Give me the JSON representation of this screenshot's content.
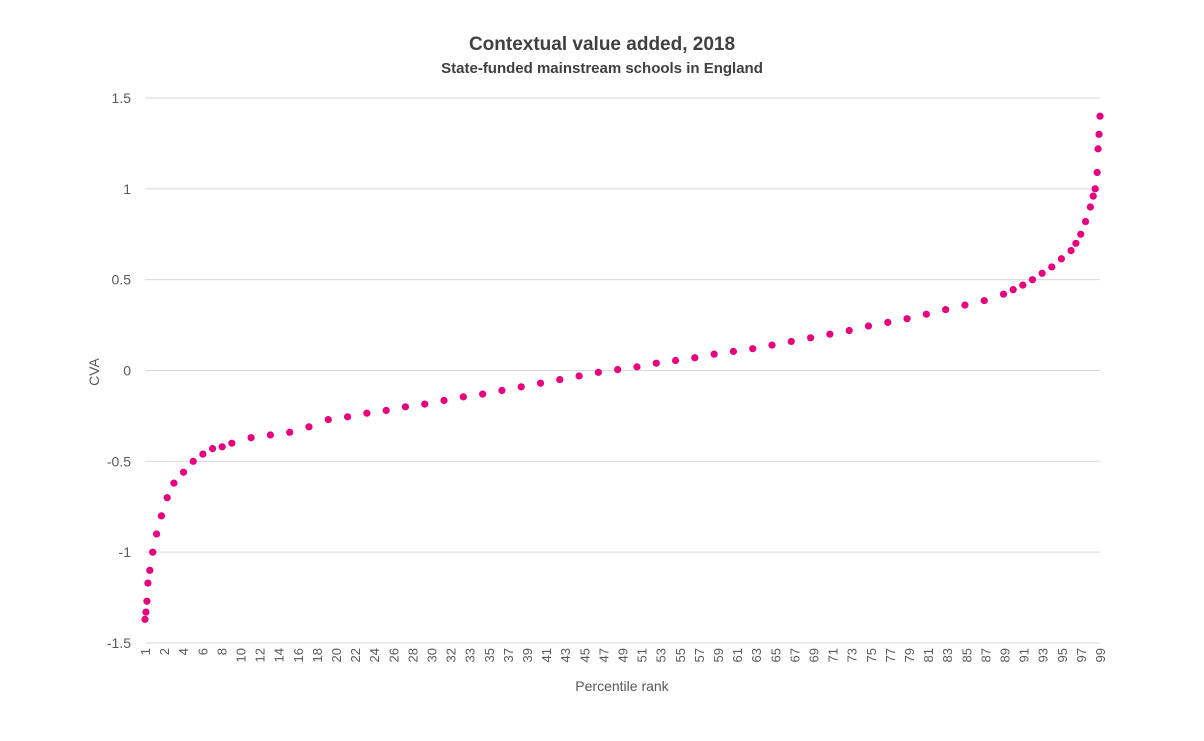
{
  "chart_data": {
    "type": "scatter",
    "title": "Contextual value added, 2018",
    "subtitle": "State-funded mainstream schools in England",
    "xlabel": "Percentile rank",
    "ylabel": "CVA",
    "ylim": [
      -1.5,
      1.5
    ],
    "xlim": [
      1,
      100
    ],
    "yticks": [
      "1.5",
      "1",
      "0.5",
      "0",
      "-0.5",
      "-1",
      "-1.5"
    ],
    "xticks": [
      "1",
      "2",
      "4",
      "6",
      "8",
      "10",
      "12",
      "14",
      "16",
      "18",
      "20",
      "22",
      "24",
      "26",
      "28",
      "30",
      "32",
      "33",
      "35",
      "37",
      "39",
      "41",
      "43",
      "45",
      "47",
      "49",
      "51",
      "53",
      "55",
      "57",
      "59",
      "61",
      "63",
      "65",
      "67",
      "69",
      "71",
      "73",
      "75",
      "77",
      "79",
      "81",
      "83",
      "85",
      "87",
      "89",
      "91",
      "93",
      "95",
      "97",
      "99"
    ],
    "grid": true,
    "legend": "none",
    "marker_color": "#e6007e",
    "series": [
      {
        "points": [
          [
            1,
            -1.37
          ],
          [
            1.1,
            -1.33
          ],
          [
            1.2,
            -1.27
          ],
          [
            1.3,
            -1.17
          ],
          [
            1.5,
            -1.1
          ],
          [
            1.8,
            -1.0
          ],
          [
            2.2,
            -0.9
          ],
          [
            2.7,
            -0.8
          ],
          [
            3.3,
            -0.7
          ],
          [
            4,
            -0.62
          ],
          [
            5,
            -0.56
          ],
          [
            6,
            -0.5
          ],
          [
            7,
            -0.46
          ],
          [
            8,
            -0.43
          ],
          [
            9,
            -0.42
          ],
          [
            10,
            -0.4
          ],
          [
            12,
            -0.37
          ],
          [
            14,
            -0.355
          ],
          [
            16,
            -0.34
          ],
          [
            18,
            -0.31
          ],
          [
            20,
            -0.27
          ],
          [
            22,
            -0.255
          ],
          [
            24,
            -0.235
          ],
          [
            26,
            -0.22
          ],
          [
            28,
            -0.2
          ],
          [
            30,
            -0.185
          ],
          [
            32,
            -0.165
          ],
          [
            34,
            -0.145
          ],
          [
            36,
            -0.13
          ],
          [
            38,
            -0.11
          ],
          [
            40,
            -0.09
          ],
          [
            42,
            -0.07
          ],
          [
            44,
            -0.05
          ],
          [
            46,
            -0.03
          ],
          [
            48,
            -0.01
          ],
          [
            50,
            0.005
          ],
          [
            52,
            0.02
          ],
          [
            54,
            0.04
          ],
          [
            56,
            0.055
          ],
          [
            58,
            0.07
          ],
          [
            60,
            0.09
          ],
          [
            62,
            0.105
          ],
          [
            64,
            0.12
          ],
          [
            66,
            0.14
          ],
          [
            68,
            0.16
          ],
          [
            70,
            0.18
          ],
          [
            72,
            0.2
          ],
          [
            74,
            0.22
          ],
          [
            76,
            0.245
          ],
          [
            78,
            0.265
          ],
          [
            80,
            0.285
          ],
          [
            82,
            0.31
          ],
          [
            84,
            0.335
          ],
          [
            86,
            0.36
          ],
          [
            88,
            0.385
          ],
          [
            90,
            0.42
          ],
          [
            91,
            0.445
          ],
          [
            92,
            0.47
          ],
          [
            93,
            0.5
          ],
          [
            94,
            0.535
          ],
          [
            95,
            0.57
          ],
          [
            96,
            0.615
          ],
          [
            97,
            0.66
          ],
          [
            97.5,
            0.7
          ],
          [
            98,
            0.75
          ],
          [
            98.5,
            0.82
          ],
          [
            99,
            0.9
          ],
          [
            99.3,
            0.96
          ],
          [
            99.5,
            1.0
          ],
          [
            99.7,
            1.09
          ],
          [
            99.8,
            1.22
          ],
          [
            99.9,
            1.3
          ],
          [
            100,
            1.4
          ]
        ]
      }
    ]
  }
}
